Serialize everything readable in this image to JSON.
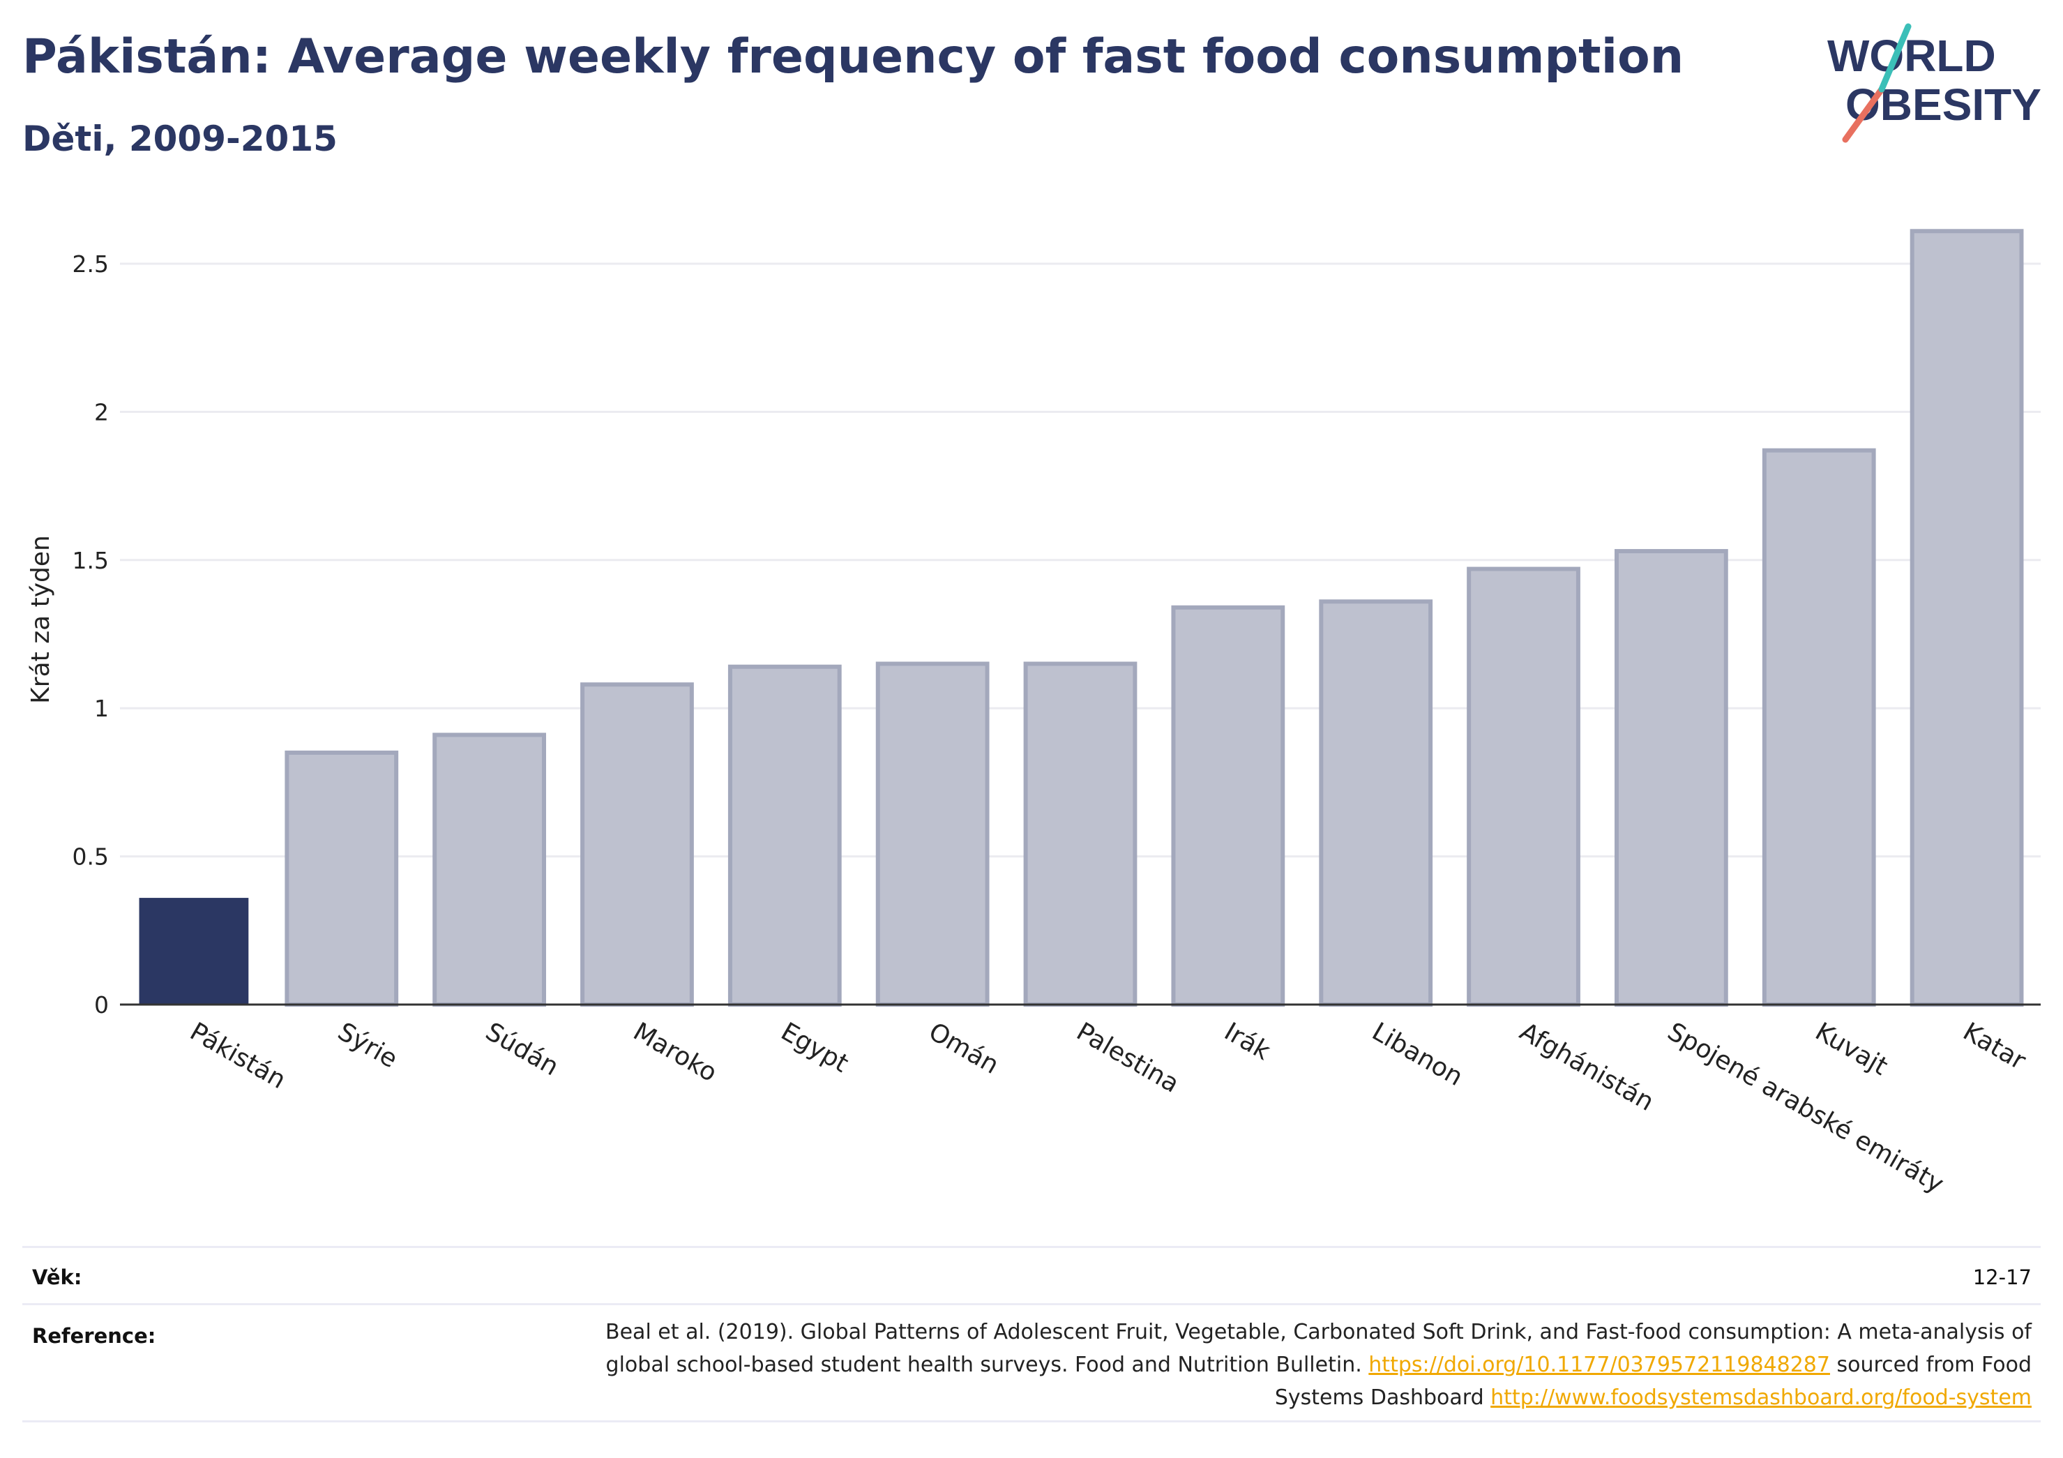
{
  "header": {
    "title": "Pákistán: Average weekly frequency of fast food consumption",
    "subtitle": "Děti, 2009-2015"
  },
  "logo": {
    "line1": "WORLD",
    "line2": "OBESITY"
  },
  "colors": {
    "highlight_bar": "#2b3763",
    "other_bar_fill": "#bec1cf",
    "other_bar_stroke": "#a3a8bc",
    "title": "#2b3763",
    "link": "#f0a800"
  },
  "chart_data": {
    "type": "bar",
    "title": "Pákistán: Average weekly frequency of fast food consumption",
    "subtitle": "Děti, 2009-2015",
    "xlabel": "",
    "ylabel": "Krát za týden",
    "ylim": [
      0,
      2.7
    ],
    "yticks": [
      0,
      0.5,
      1,
      1.5,
      2,
      2.5
    ],
    "ytick_labels": [
      "0",
      "0.5",
      "1",
      "1.5",
      "2",
      "2.5"
    ],
    "grid": true,
    "highlight": "Pákistán",
    "categories": [
      "Pákistán",
      "Sýrie",
      "Súdán",
      "Maroko",
      "Egypt",
      "Omán",
      "Palestina",
      "Irák",
      "Libanon",
      "Afghánistán",
      "Spojené arabské emiráty",
      "Kuvajt",
      "Katar"
    ],
    "values": [
      0.36,
      0.85,
      0.91,
      1.08,
      1.14,
      1.15,
      1.15,
      1.34,
      1.36,
      1.47,
      1.53,
      1.87,
      2.61
    ]
  },
  "info": {
    "age_label": "Věk:",
    "age_value": "12-17",
    "reference_label": "Reference:",
    "reference_text1": "Beal et al. (2019). Global Patterns of Adolescent Fruit, Vegetable, Carbonated Soft Drink, and Fast-food consumption: A meta-analysis of global school-based student health surveys. Food and Nutrition Bulletin. ",
    "reference_link1": "https://doi.org/10.1177/0379572119848287",
    "reference_text2": " sourced from Food Systems Dashboard ",
    "reference_link2": "http://www.foodsystemsdashboard.org/food-system"
  }
}
